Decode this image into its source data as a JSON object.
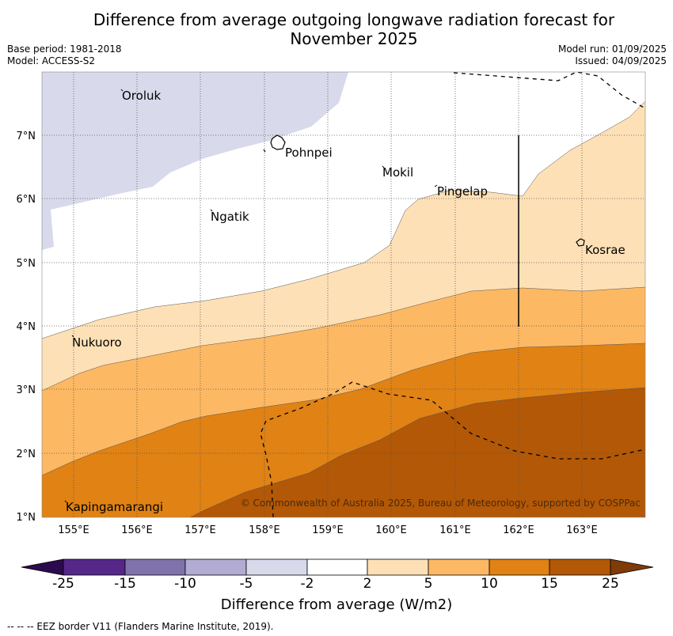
{
  "title_line1": "Difference from average outgoing longwave radiation forecast for",
  "title_line2": "November 2025",
  "base_period": "Base period: 1981-2018",
  "model": "Model: ACCESS-S2",
  "model_run": "Model run: 01/09/2025",
  "issued": "Issued: 04/09/2025",
  "copyright": "© Commonwealth of Australia 2025, Bureau of Meteorology, supported by COSPPac",
  "x_ticks": [
    "155°E",
    "156°E",
    "157°E",
    "158°E",
    "159°E",
    "160°E",
    "161°E",
    "162°E",
    "163°E"
  ],
  "y_ticks": [
    "7°N",
    "6°N",
    "5°N",
    "4°N",
    "3°N",
    "2°N",
    "1°N"
  ],
  "places": {
    "oroluk": "Oroluk",
    "pohnpei": "Pohnpei",
    "mokil": "Mokil",
    "pingelap": "Pingelap",
    "ngatik": "Ngatik",
    "kosrae": "Kosrae",
    "nukuoro": "Nukuoro",
    "kapingamarangi": "Kapingamarangi"
  },
  "colorbar": {
    "labels": [
      "-25",
      "-15",
      "-10",
      "-5",
      "-2",
      "2",
      "5",
      "10",
      "15",
      "25"
    ],
    "colors": {
      "below_-25": "#2d0a4e",
      "-25_-15": "#542788",
      "-15_-10": "#8073ac",
      "-10_-5": "#b2abd2",
      "-5_-2": "#d8daeb",
      "-2_2": "#ffffff",
      "2_5": "#fee0b6",
      "5_10": "#fdb863",
      "10_15": "#e08214",
      "15_25": "#b35806",
      "above_25": "#7f3b08"
    },
    "title": "Difference from average (W/m2)"
  },
  "footer": "-- -- -- EEZ border V11 (Flanders Marine Institute, 2019)."
}
